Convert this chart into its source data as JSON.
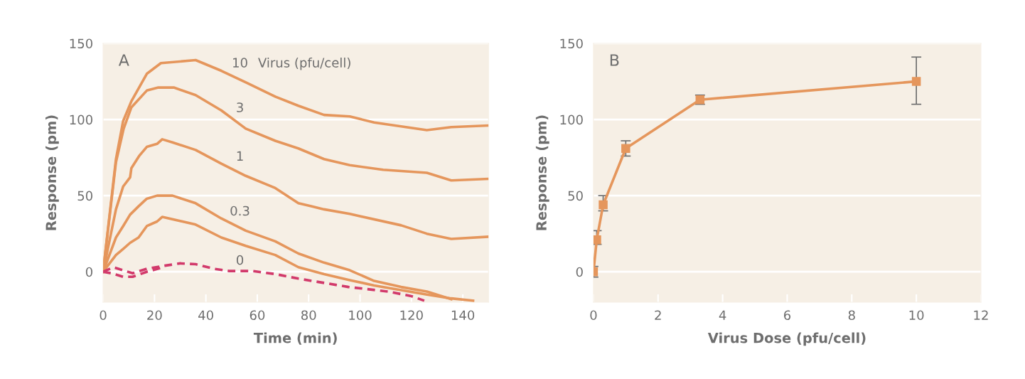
{
  "chart_data": [
    {
      "type": "line",
      "xlabel": "Time (min)",
      "ylabel": "Response (pm)",
      "legend_title": "Virus (pfu/cell)",
      "annotations": [
        "A"
      ],
      "xlim": [
        0,
        150
      ],
      "xticks": [
        0,
        20,
        40,
        60,
        80,
        100,
        120,
        140
      ],
      "ylim": [
        -20,
        150
      ],
      "yticks": [
        0,
        50,
        100,
        150
      ],
      "grid": "y",
      "legend": false,
      "marker": "none",
      "series": [
        {
          "name": "10",
          "color": "#e5965c",
          "line_style": "solid",
          "x": [
            0,
            5,
            7.8,
            11,
            17,
            22.5,
            36,
            46,
            56,
            67,
            76,
            86,
            96,
            105.5,
            126,
            135.5,
            149.6
          ],
          "values": [
            0,
            74,
            99,
            112,
            130,
            137,
            139,
            132,
            124,
            115,
            109,
            103,
            102,
            98,
            93,
            95,
            96
          ]
        },
        {
          "name": "3",
          "color": "#e5965c",
          "line_style": "solid",
          "x": [
            0,
            5,
            8,
            11,
            17,
            21.5,
            27.5,
            36,
            46,
            55.5,
            67,
            76,
            86,
            96,
            109,
            126,
            135.5,
            149.6
          ],
          "values": [
            0,
            72,
            94,
            108,
            119,
            121,
            121,
            116,
            106,
            94,
            86,
            81,
            74,
            70,
            67,
            65,
            60,
            61
          ]
        },
        {
          "name": "1",
          "color": "#e5965c",
          "line_style": "solid",
          "x": [
            0,
            5,
            7.8,
            10.5,
            11,
            14,
            17,
            21,
            23,
            27,
            36,
            46,
            55.5,
            67,
            76,
            81,
            86,
            96,
            116,
            126,
            135.5,
            149.6
          ],
          "values": [
            0,
            41,
            56,
            62,
            68,
            76,
            82,
            84,
            87,
            85,
            80,
            71,
            63,
            55,
            45,
            43,
            41,
            38,
            30.5,
            25,
            21.6,
            23
          ]
        },
        {
          "name": "0.3",
          "color": "#e5965c",
          "line_style": "solid",
          "x": [
            0,
            5,
            7.8,
            10.5,
            13.8,
            17,
            21,
            27,
            36,
            46,
            55.5,
            67,
            76,
            86,
            96,
            105.5,
            116,
            126,
            135.5
          ],
          "values": [
            0,
            22.5,
            30,
            37.5,
            43,
            48,
            50,
            50,
            45,
            35,
            27,
            20,
            12,
            6,
            1,
            -6,
            -10,
            -13,
            -18
          ]
        },
        {
          "color": "#e5965c",
          "line_style": "solid",
          "x": [
            0,
            5,
            7.8,
            10.5,
            13.8,
            17,
            21,
            23,
            36,
            46,
            55.5,
            67,
            76,
            86,
            96,
            105.5,
            126,
            135.5,
            144
          ],
          "values": [
            0,
            11,
            15,
            19,
            22.5,
            30,
            33,
            36,
            31,
            22.5,
            17,
            11,
            3,
            -1.5,
            -5.5,
            -9,
            -15,
            -17.5,
            -19
          ]
        },
        {
          "name": "0",
          "color": "#d23a6b",
          "line_style": "dashed",
          "x": [
            0,
            4,
            11.5,
            17,
            24,
            30,
            36,
            43,
            49,
            58,
            67,
            76,
            95.5,
            111,
            120,
            125
          ],
          "values": [
            0,
            3,
            -1,
            2,
            4,
            5.5,
            5,
            2,
            0.5,
            0.5,
            -1.5,
            -4.5,
            -10,
            -13,
            -16,
            -19
          ]
        },
        {
          "color": "#d23a6b",
          "line_style": "dashed",
          "x": [
            0,
            3.3,
            7.8,
            11.5,
            17,
            23.5
          ],
          "values": [
            0,
            -1,
            -3.3,
            -3.3,
            0,
            3
          ]
        }
      ]
    },
    {
      "type": "line",
      "xlabel": "Virus Dose (pfu/cell)",
      "ylabel": "Response (pm)",
      "annotations": [
        "B"
      ],
      "xlim": [
        0,
        12
      ],
      "xticks": [
        0,
        2,
        4,
        6,
        8,
        10,
        12
      ],
      "ylim": [
        -20,
        150
      ],
      "yticks": [
        0,
        50,
        100,
        150
      ],
      "grid": "y",
      "legend": false,
      "marker": "square",
      "x": [
        0,
        0.1,
        0.3,
        1,
        3.3,
        10
      ],
      "series": [
        {
          "color": "#e5965c",
          "line_style": "solid",
          "values": [
            0,
            21,
            44,
            81,
            113,
            125
          ],
          "errors": [
            [
              -3.5,
              3.5
            ],
            [
              18,
              27
            ],
            [
              40,
              50
            ],
            [
              76,
              86
            ],
            [
              110,
              116
            ],
            [
              110,
              141
            ]
          ]
        }
      ]
    }
  ]
}
